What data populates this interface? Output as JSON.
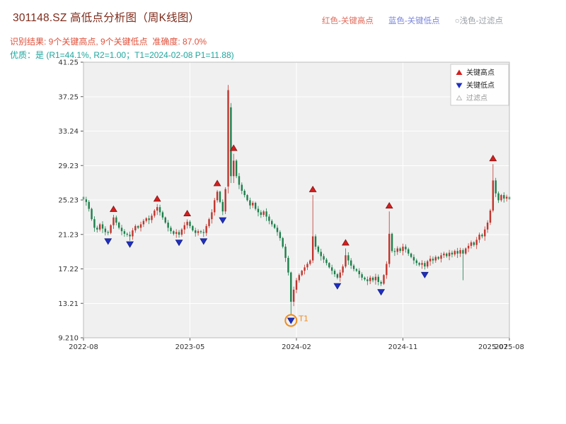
{
  "header": {
    "title": "301148.SZ 高低点分析图（周K线图）",
    "title_color": "#7e2a1a",
    "legend_top": [
      {
        "label": "红色-关键高点",
        "color": "#e06a5a"
      },
      {
        "label": "蓝色-关键低点",
        "color": "#7b87dc"
      },
      {
        "label": "○浅色-过滤点",
        "color": "#9aa0a6"
      }
    ],
    "result_line": "识别结果: 9个关键高点, 9个关键低点  准确度: 87.0%",
    "result_color": "#e0503a",
    "quality_line": "优质：是 (R1=44.1%, R2=1.00；T1=2024-02-08 P1=11.88)",
    "quality_color": "#1ea69e"
  },
  "chart_data": {
    "type": "candlestick",
    "title": "301148.SZ 高低点分析图（周K线图）",
    "symbol": "301148.SZ",
    "period": "weekly",
    "xlabel": "",
    "ylabel": "",
    "legend_position": "upper right",
    "grid": true,
    "x_start": "2022-08",
    "x_end": "2025-08",
    "x_tick_labels": [
      "2022-08",
      "2023-05",
      "2024-02",
      "2024-11",
      "2025-08"
    ],
    "x_extra_label": "2025-07",
    "y_tick_labels": [
      "41.25",
      "37.25",
      "33.24",
      "29.23",
      "25.23",
      "21.23",
      "17.22",
      "13.21",
      "9.210"
    ],
    "ylim": [
      9.21,
      41.25
    ],
    "first_open": 25.6,
    "closes": [
      25.3,
      25.0,
      24.2,
      23.0,
      22.0,
      21.8,
      22.4,
      21.9,
      21.5,
      21.4,
      22.3,
      23.2,
      22.6,
      22.0,
      21.6,
      21.3,
      21.2,
      21.0,
      21.7,
      22.2,
      22.0,
      22.4,
      22.8,
      23.1,
      22.9,
      23.4,
      24.0,
      24.4,
      23.8,
      23.2,
      22.6,
      22.0,
      21.6,
      21.3,
      21.5,
      21.2,
      21.8,
      22.3,
      22.7,
      22.2,
      21.7,
      21.4,
      21.6,
      21.5,
      21.4,
      22.2,
      23.0,
      23.8,
      25.2,
      26.2,
      25.0,
      23.9,
      26.5,
      38.0,
      28.0,
      29.8,
      28.0,
      27.0,
      26.3,
      25.8,
      25.2,
      24.6,
      24.9,
      24.2,
      23.8,
      23.5,
      23.9,
      23.3,
      22.8,
      22.4,
      22.0,
      21.5,
      20.8,
      19.8,
      18.5,
      16.8,
      13.4,
      14.8,
      15.9,
      16.5,
      17.0,
      17.4,
      17.8,
      18.2,
      21.0,
      19.8,
      19.2,
      18.7,
      18.3,
      17.9,
      17.4,
      17.0,
      16.6,
      16.2,
      16.8,
      17.5,
      18.8,
      18.2,
      17.6,
      17.2,
      17.0,
      16.6,
      16.2,
      16.0,
      15.8,
      16.2,
      15.9,
      16.3,
      15.7,
      15.5,
      16.5,
      17.8,
      21.3,
      19.3,
      19.2,
      19.6,
      19.3,
      19.8,
      19.5,
      19.0,
      18.6,
      18.2,
      17.9,
      17.7,
      17.9,
      17.5,
      18.1,
      18.4,
      18.2,
      18.6,
      18.4,
      18.8,
      19.0,
      18.7,
      19.1,
      18.9,
      19.3,
      19.0,
      19.4,
      19.0,
      19.6,
      19.9,
      20.3,
      20.0,
      20.6,
      21.2,
      21.0,
      21.8,
      22.6,
      24.0,
      27.5,
      26.0,
      25.2,
      25.8,
      25.4,
      25.6,
      25.3
    ],
    "candle_overrides": {
      "53": [
        26.8,
        38.6,
        26.0,
        38.0
      ],
      "54": [
        36.0,
        36.5,
        27.2,
        28.0
      ],
      "55": [
        28.0,
        30.6,
        27.2,
        29.8
      ],
      "76": [
        16.8,
        16.9,
        11.88,
        13.4
      ],
      "84": [
        18.2,
        25.8,
        17.9,
        21.0
      ],
      "96": [
        17.5,
        19.6,
        17.3,
        18.8
      ],
      "112": [
        17.8,
        23.9,
        17.4,
        21.3
      ],
      "139": [
        19.4,
        19.6,
        15.9,
        19.0
      ],
      "150": [
        24.0,
        29.4,
        23.8,
        27.5
      ]
    },
    "key_highs": [
      {
        "week": 11,
        "price": 23.5
      },
      {
        "week": 27,
        "price": 24.7
      },
      {
        "week": 38,
        "price": 23.0
      },
      {
        "week": 49,
        "price": 26.5
      },
      {
        "week": 55,
        "price": 30.6
      },
      {
        "week": 84,
        "price": 25.8
      },
      {
        "week": 96,
        "price": 19.6
      },
      {
        "week": 112,
        "price": 23.9
      },
      {
        "week": 150,
        "price": 29.4
      }
    ],
    "key_lows": [
      {
        "week": 9,
        "price": 21.1
      },
      {
        "week": 17,
        "price": 20.75
      },
      {
        "week": 35,
        "price": 20.95
      },
      {
        "week": 44,
        "price": 21.1
      },
      {
        "week": 51,
        "price": 23.55
      },
      {
        "week": 76,
        "price": 11.88
      },
      {
        "week": 93,
        "price": 15.9
      },
      {
        "week": 109,
        "price": 15.2
      },
      {
        "week": 125,
        "price": 17.2
      }
    ],
    "t1": {
      "week": 76,
      "price": 11.88,
      "label": "T1",
      "date": "2024-02-08"
    },
    "in_legend": [
      {
        "marker": "up-triangle",
        "color": "#d41e1e",
        "label": "关键高点",
        "text_color": "#222222"
      },
      {
        "marker": "down-triangle",
        "color": "#1f2fc0",
        "label": "关键低点",
        "text_color": "#222222"
      },
      {
        "marker": "hollow-triangle",
        "color": "#bbbbbb",
        "label": "过滤点",
        "text_color": "#999999"
      }
    ],
    "colors": {
      "up": "#c2342c",
      "down": "#1c7f4b",
      "high_marker": "#d41e1e",
      "high_marker_edge": "#7d0f0f",
      "low_marker": "#1f2fc0",
      "low_marker_edge": "#101b7a",
      "t1": "#f08c1e",
      "plot_bg": "#f0f0f0",
      "grid": "#ffffff",
      "border": "#bdbdbd",
      "tick_text": "#333333"
    }
  }
}
